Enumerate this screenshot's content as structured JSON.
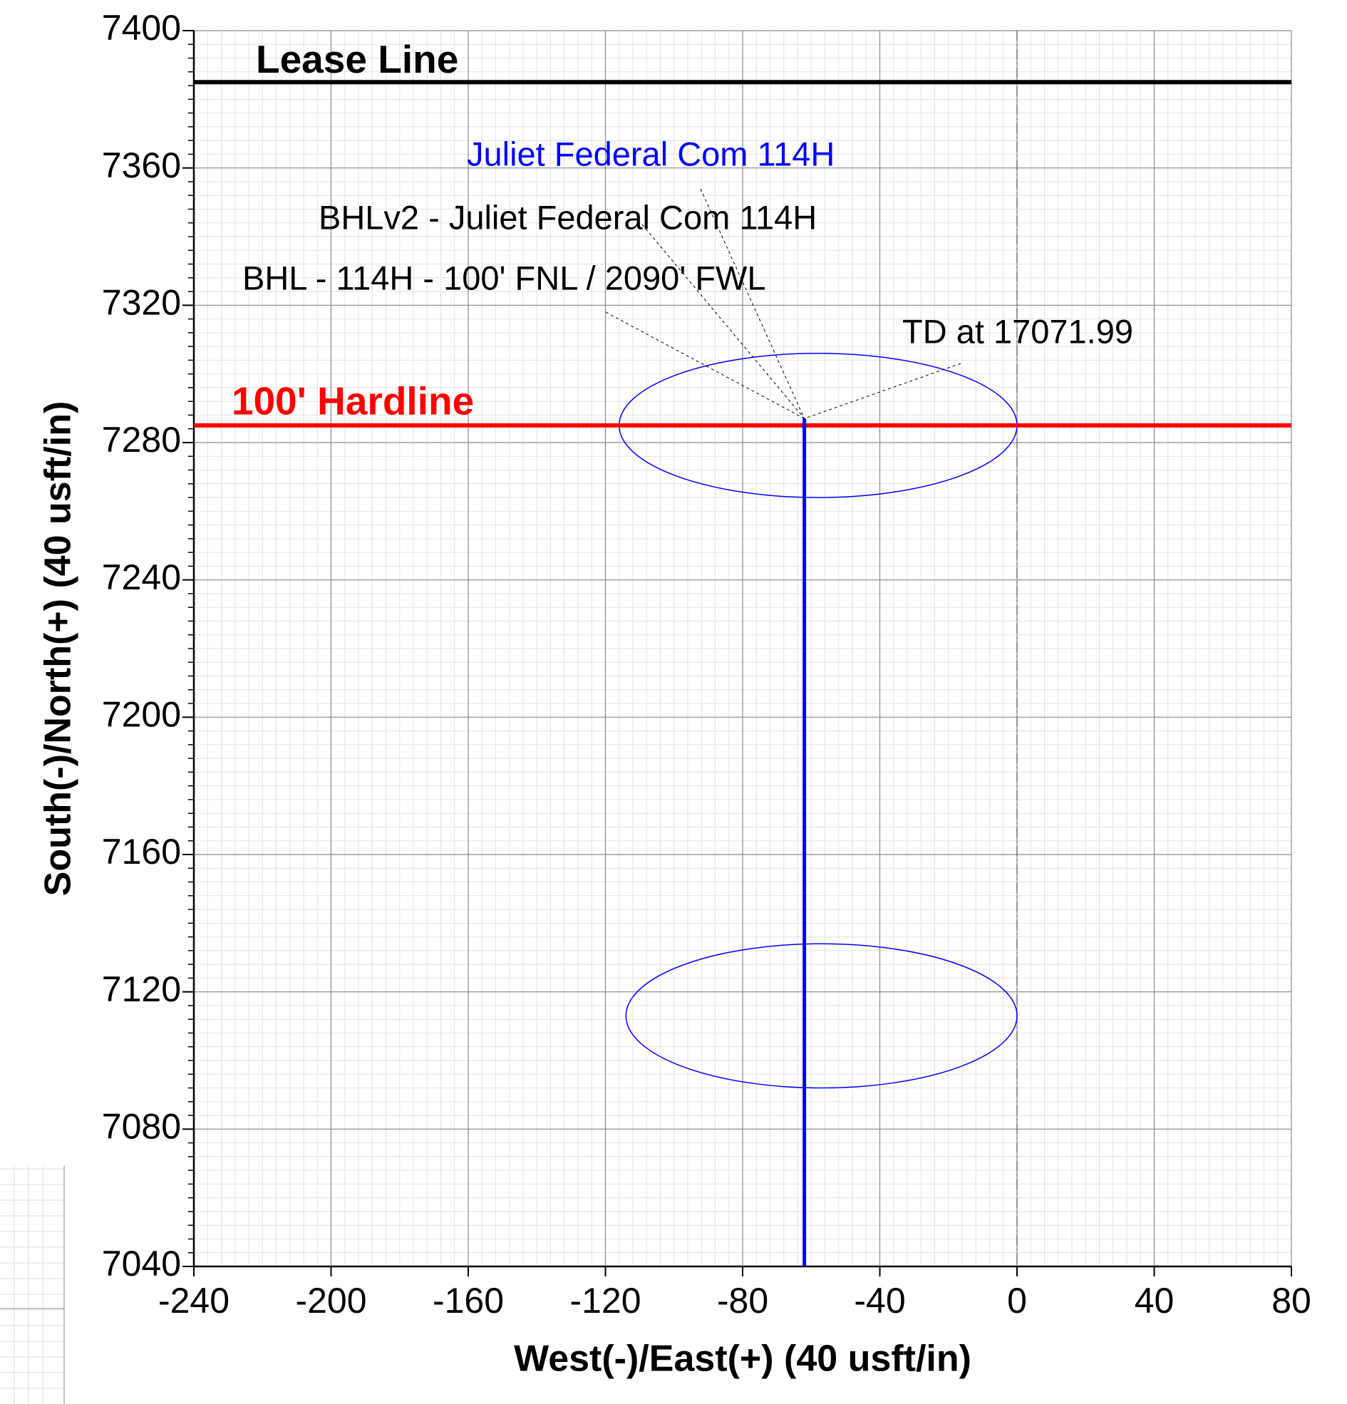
{
  "chart_data": {
    "type": "line",
    "xlabel": "West(-)/East(+) (40 usft/in)",
    "ylabel": "South(-)/North(+) (40 usft/in)",
    "xlim": [
      -240,
      80
    ],
    "ylim": [
      7040,
      7400
    ],
    "xticks": [
      -240,
      -200,
      -160,
      -120,
      -80,
      -40,
      0,
      40,
      80
    ],
    "yticks": [
      7040,
      7080,
      7120,
      7160,
      7200,
      7240,
      7280,
      7320,
      7360,
      7400
    ],
    "grid": true,
    "reference_x": 0,
    "series": [
      {
        "name": "Juliet Federal Com 114H",
        "color": "#0000ff",
        "x": [
          -62,
          -62
        ],
        "y": [
          7040,
          7287
        ]
      }
    ],
    "lines": [
      {
        "label": "Lease Line",
        "y": 7385,
        "color": "#000000"
      },
      {
        "label": "100' Hardline",
        "y": 7285,
        "color": "#ff0000"
      }
    ],
    "ellipses": [
      {
        "x": -58,
        "y": 7285,
        "rx": 58,
        "ry": 21,
        "color": "#0000ff"
      },
      {
        "x": -57,
        "y": 7113,
        "rx": 57,
        "ry": 21,
        "color": "#0000ff"
      }
    ],
    "annotations": [
      {
        "text": "BHLv2 - Juliet Federal Com 114H"
      },
      {
        "text": "BHL - 114H - 100' FNL / 2090' FWL"
      },
      {
        "text": "TD at 17071.99"
      }
    ]
  }
}
